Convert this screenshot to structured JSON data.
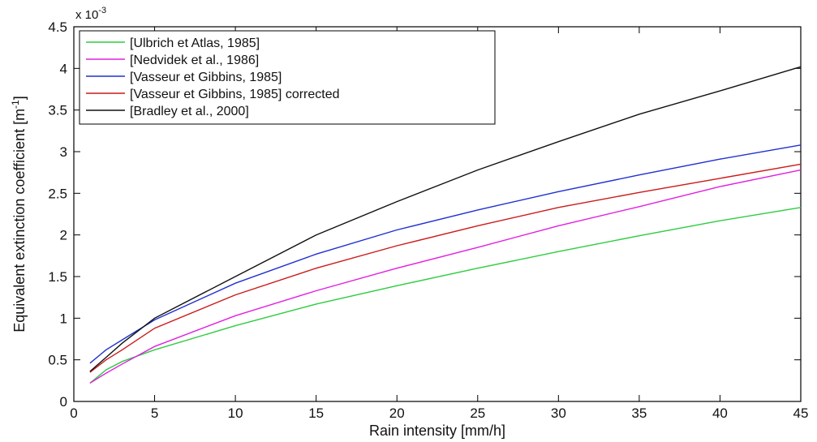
{
  "chart_data": {
    "type": "line",
    "xlabel": "Rain intensity [mm/h]",
    "ylabel_main": "Equivalent extinction coefficient [m",
    "ylabel_sup": "-1",
    "ylabel_close": "]",
    "y_exponent_base": "x 10",
    "y_exponent_power": "-3",
    "xlim": [
      0,
      45
    ],
    "ylim": [
      0,
      4.5
    ],
    "x_ticks": [
      0,
      5,
      10,
      15,
      20,
      25,
      30,
      35,
      40,
      45
    ],
    "y_ticks": [
      0,
      0.5,
      1,
      1.5,
      2,
      2.5,
      3,
      3.5,
      4,
      4.5
    ],
    "x_tick_labels": [
      "0",
      "5",
      "10",
      "15",
      "20",
      "25",
      "30",
      "35",
      "40",
      "45"
    ],
    "y_tick_labels": [
      "0",
      "0.5",
      "1",
      "1.5",
      "2",
      "2.5",
      "3",
      "3.5",
      "4",
      "4.5"
    ],
    "grid": false,
    "legend_position": "top-left",
    "x": [
      1,
      2,
      3,
      5,
      10,
      15,
      20,
      25,
      30,
      35,
      40,
      45
    ],
    "series": [
      {
        "name": "[Ulbrich et Atlas, 1985]",
        "color": "#2ecc40",
        "values": [
          0.22,
          0.38,
          0.48,
          0.62,
          0.91,
          1.17,
          1.39,
          1.6,
          1.8,
          1.99,
          2.17,
          2.33
        ]
      },
      {
        "name": "[Nedvidek et al., 1986]",
        "color": "#e020e0",
        "values": [
          0.22,
          0.34,
          0.45,
          0.66,
          1.03,
          1.33,
          1.6,
          1.85,
          2.11,
          2.34,
          2.58,
          2.78
        ]
      },
      {
        "name": "[Vasseur et Gibbins, 1985]",
        "color": "#2030d0",
        "values": [
          0.46,
          0.62,
          0.74,
          0.98,
          1.42,
          1.77,
          2.06,
          2.3,
          2.52,
          2.72,
          2.91,
          3.08
        ]
      },
      {
        "name": "[Vasseur et Gibbins, 1985] corrected",
        "color": "#cc1a1a",
        "values": [
          0.35,
          0.5,
          0.62,
          0.88,
          1.28,
          1.6,
          1.87,
          2.11,
          2.33,
          2.51,
          2.68,
          2.85
        ]
      },
      {
        "name": "[Bradley et al., 2000]",
        "color": "#111111",
        "values": [
          0.36,
          0.53,
          0.7,
          1.0,
          1.5,
          2.0,
          2.4,
          2.78,
          3.12,
          3.45,
          3.73,
          4.02
        ]
      }
    ]
  }
}
